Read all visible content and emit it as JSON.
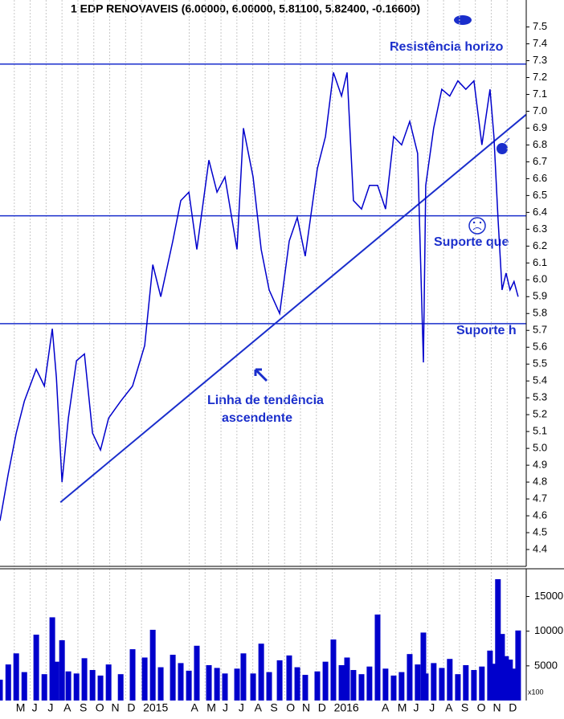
{
  "chart_data": [
    {
      "type": "line",
      "title": "1 EDP RENOVAVEIS (6.00000, 6.00000, 5.81100, 5.82400, -0.16600)",
      "color": "#0000cc",
      "x": [
        3.1,
        3.62,
        4.12,
        4.63,
        5.38,
        5.89,
        6.39,
        6.65,
        7.0,
        7.4,
        7.91,
        8.41,
        8.92,
        9.42,
        9.93,
        10.69,
        11.44,
        12.2,
        12.71,
        13.21,
        13.97,
        14.47,
        14.98,
        15.48,
        16.24,
        16.75,
        17.25,
        18.01,
        18.41,
        19.02,
        19.53,
        20.03,
        20.69,
        21.29,
        21.8,
        22.3,
        23.06,
        23.57,
        24.07,
        24.58,
        24.93,
        25.33,
        25.84,
        26.34,
        26.85,
        27.35,
        27.86,
        28.36,
        28.87,
        29.37,
        29.73,
        29.88,
        30.38,
        30.89,
        31.39,
        31.9,
        32.4,
        32.91,
        33.41,
        33.92,
        34.17,
        34.42,
        34.68,
        34.93,
        35.18,
        35.43,
        35.69
      ],
      "values": [
        4.57,
        4.85,
        5.09,
        5.28,
        5.47,
        5.37,
        5.71,
        5.42,
        4.8,
        5.18,
        5.52,
        5.56,
        5.09,
        4.99,
        5.18,
        5.28,
        5.37,
        5.61,
        6.09,
        5.9,
        6.23,
        6.47,
        6.52,
        6.18,
        6.71,
        6.52,
        6.61,
        6.18,
        6.9,
        6.61,
        6.18,
        5.94,
        5.8,
        6.23,
        6.37,
        6.14,
        6.66,
        6.85,
        7.23,
        7.09,
        7.23,
        6.47,
        6.42,
        6.56,
        6.56,
        6.42,
        6.85,
        6.8,
        6.94,
        6.75,
        5.51,
        6.56,
        6.9,
        7.13,
        7.09,
        7.18,
        7.13,
        7.18,
        6.8,
        7.13,
        6.85,
        6.37,
        5.94,
        6.04,
        5.94,
        5.99,
        5.9
      ],
      "xlim": [
        3.1,
        36.2
      ],
      "xticks": [
        {
          "value": 4,
          "label": "M"
        },
        {
          "value": 5,
          "label": "J"
        },
        {
          "value": 6,
          "label": "J"
        },
        {
          "value": 7,
          "label": "A"
        },
        {
          "value": 8,
          "label": "S"
        },
        {
          "value": 9,
          "label": "O"
        },
        {
          "value": 10,
          "label": "N"
        },
        {
          "value": 11,
          "label": "D"
        },
        {
          "value": 12,
          "label": "2015"
        },
        {
          "value": 15,
          "label": "A"
        },
        {
          "value": 16,
          "label": "M"
        },
        {
          "value": 17,
          "label": "J"
        },
        {
          "value": 18,
          "label": "J"
        },
        {
          "value": 19,
          "label": "A"
        },
        {
          "value": 20,
          "label": "S"
        },
        {
          "value": 21,
          "label": "O"
        },
        {
          "value": 22,
          "label": "N"
        },
        {
          "value": 23,
          "label": "D"
        },
        {
          "value": 24,
          "label": "2016"
        },
        {
          "value": 27,
          "label": "A"
        },
        {
          "value": 28,
          "label": "M"
        },
        {
          "value": 29,
          "label": "J"
        },
        {
          "value": 30,
          "label": "J"
        },
        {
          "value": 31,
          "label": "A"
        },
        {
          "value": 32,
          "label": "S"
        },
        {
          "value": 33,
          "label": "O"
        },
        {
          "value": 34,
          "label": "N"
        },
        {
          "value": 35,
          "label": "D"
        }
      ],
      "ylim": [
        4.3,
        7.66
      ],
      "yticks": [
        4.4,
        4.5,
        4.6,
        4.7,
        4.8,
        4.9,
        {
          "value": 5,
          "label": "5.0"
        },
        5.1,
        5.2,
        5.3,
        5.4,
        5.5,
        5.6,
        5.7,
        5.8,
        5.9,
        {
          "value": 6,
          "label": "6.0"
        },
        6.1,
        6.2,
        6.3,
        6.4,
        6.5,
        6.6,
        6.7,
        6.8,
        6.9,
        {
          "value": 7,
          "label": "7.0"
        },
        7.1,
        7.2,
        7.3,
        7.4,
        7.5
      ],
      "grid": true,
      "hlines": [
        7.28,
        6.38,
        5.74
      ],
      "trendline": {
        "x": [
          6.9,
          36.19
        ],
        "y": [
          4.68,
          6.98
        ]
      },
      "annotations": [
        "Resistência horizo",
        "Suporte que",
        "Suporte h",
        "Linha de tendência",
        "ascendente"
      ]
    },
    {
      "type": "bar",
      "color": "#0000cc",
      "y_label": "x100",
      "x": [
        3.1,
        3.62,
        4.12,
        4.63,
        5.38,
        5.89,
        6.39,
        6.65,
        7.0,
        7.4,
        7.91,
        8.41,
        8.92,
        9.42,
        9.93,
        10.69,
        11.44,
        12.2,
        12.71,
        13.21,
        13.97,
        14.47,
        14.98,
        15.48,
        16.24,
        16.75,
        17.25,
        18.01,
        18.41,
        19.02,
        19.53,
        20.03,
        20.69,
        21.29,
        21.8,
        22.3,
        23.06,
        23.57,
        24.07,
        24.58,
        24.93,
        25.33,
        25.84,
        26.34,
        26.85,
        27.35,
        27.86,
        28.36,
        28.87,
        29.37,
        29.73,
        29.88,
        30.38,
        30.89,
        31.39,
        31.9,
        32.4,
        32.91,
        33.41,
        33.92,
        34.17,
        34.42,
        34.68,
        34.93,
        35.18,
        35.43,
        35.69
      ],
      "values": [
        3000,
        5200,
        6800,
        4100,
        9500,
        3800,
        12000,
        5600,
        8700,
        4200,
        3900,
        6100,
        4400,
        3600,
        5200,
        3800,
        7400,
        6200,
        10200,
        4800,
        6600,
        5400,
        4300,
        7900,
        5100,
        4700,
        3900,
        4600,
        6800,
        3900,
        8200,
        4100,
        5800,
        6500,
        4800,
        3700,
        4200,
        5600,
        8800,
        5100,
        6200,
        4400,
        3800,
        4900,
        12400,
        4600,
        3600,
        4100,
        6700,
        5200,
        9800,
        3900,
        5400,
        4700,
        6000,
        3800,
        5100,
        4400,
        4900,
        7200,
        5300,
        17500,
        9600,
        6400,
        5900,
        4600,
        10100
      ],
      "xlim": [
        3.1,
        36.2
      ],
      "ylim": [
        0,
        19000
      ],
      "yticks": [
        5000,
        10000,
        15000
      ]
    }
  ]
}
